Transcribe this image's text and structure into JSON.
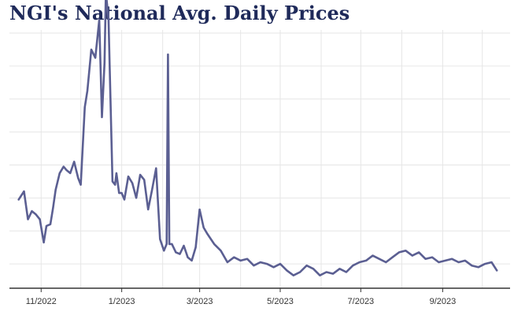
{
  "chart_data": {
    "type": "line",
    "title": "NGI's National Avg. Daily Prices",
    "xlabel": "",
    "ylabel": "",
    "x_tick_labels": [
      "11/2022",
      "1/2023",
      "3/2023",
      "5/2023",
      "7/2023",
      "9/2023"
    ],
    "y_axis_labels_shown": false,
    "grid": true,
    "colors": {
      "line": "#5b5f92",
      "title": "#1f2a5a",
      "grid": "#e6e6e6",
      "axis": "#333333"
    },
    "ylim": [
      0,
      15
    ],
    "series": [
      {
        "x": [
          "2022-10-15",
          "2022-10-19",
          "2022-10-22",
          "2022-10-25",
          "2022-10-28",
          "2022-10-31",
          "2022-11-03",
          "2022-11-05",
          "2022-11-08",
          "2022-11-10",
          "2022-11-12",
          "2022-11-15",
          "2022-11-18",
          "2022-11-20",
          "2022-11-23",
          "2022-11-26",
          "2022-11-29",
          "2022-12-01",
          "2022-12-04",
          "2022-12-06",
          "2022-12-09",
          "2022-12-12",
          "2022-12-15",
          "2022-12-17",
          "2022-12-19",
          "2022-12-20",
          "2022-12-22",
          "2022-12-25",
          "2022-12-27",
          "2022-12-28",
          "2022-12-30",
          "2023-01-01",
          "2023-01-03",
          "2023-01-06",
          "2023-01-09",
          "2023-01-12",
          "2023-01-15",
          "2023-01-18",
          "2023-01-21",
          "2023-01-24",
          "2023-01-27",
          "2023-01-30",
          "2023-02-02",
          "2023-02-04",
          "2023-02-05",
          "2023-02-06",
          "2023-02-08",
          "2023-02-11",
          "2023-02-14",
          "2023-02-17",
          "2023-02-20",
          "2023-02-23",
          "2023-02-26",
          "2023-03-01",
          "2023-03-04",
          "2023-03-07",
          "2023-03-12",
          "2023-03-17",
          "2023-03-22",
          "2023-03-27",
          "2023-04-01",
          "2023-04-06",
          "2023-04-11",
          "2023-04-16",
          "2023-04-21",
          "2023-04-26",
          "2023-05-01",
          "2023-05-06",
          "2023-05-11",
          "2023-05-16",
          "2023-05-21",
          "2023-05-26",
          "2023-05-31",
          "2023-06-05",
          "2023-06-10",
          "2023-06-15",
          "2023-06-20",
          "2023-06-25",
          "2023-06-30",
          "2023-07-05",
          "2023-07-10",
          "2023-07-15",
          "2023-07-20",
          "2023-07-25",
          "2023-07-30",
          "2023-08-04",
          "2023-08-09",
          "2023-08-14",
          "2023-08-19",
          "2023-08-24",
          "2023-08-29",
          "2023-09-03",
          "2023-09-08",
          "2023-09-13",
          "2023-09-18",
          "2023-09-23",
          "2023-09-28",
          "2023-10-03",
          "2023-10-08",
          "2023-10-12"
        ],
        "y": [
          4.9,
          5.4,
          3.7,
          4.2,
          4.0,
          3.7,
          2.3,
          3.3,
          3.4,
          4.4,
          5.5,
          6.5,
          6.9,
          6.7,
          6.5,
          7.2,
          6.2,
          5.8,
          10.5,
          11.5,
          14.0,
          13.5,
          15.8,
          9.9,
          13.2,
          17.5,
          15.8,
          6.0,
          5.8,
          6.5,
          5.3,
          5.3,
          4.9,
          6.3,
          5.9,
          5.0,
          6.4,
          6.1,
          4.3,
          5.5,
          6.8,
          2.5,
          1.8,
          2.2,
          13.7,
          2.2,
          2.2,
          1.7,
          1.6,
          2.1,
          1.4,
          1.2,
          2.0,
          4.3,
          3.2,
          2.8,
          2.2,
          1.8,
          1.1,
          1.4,
          1.2,
          1.3,
          0.9,
          1.1,
          1.0,
          0.8,
          1.0,
          0.6,
          0.3,
          0.5,
          0.9,
          0.7,
          0.3,
          0.5,
          0.4,
          0.7,
          0.5,
          0.9,
          1.1,
          1.2,
          1.5,
          1.3,
          1.1,
          1.4,
          1.7,
          1.8,
          1.5,
          1.7,
          1.3,
          1.4,
          1.1,
          1.2,
          1.3,
          1.1,
          1.2,
          0.9,
          0.8,
          1.0,
          1.1,
          0.6
        ]
      }
    ]
  }
}
